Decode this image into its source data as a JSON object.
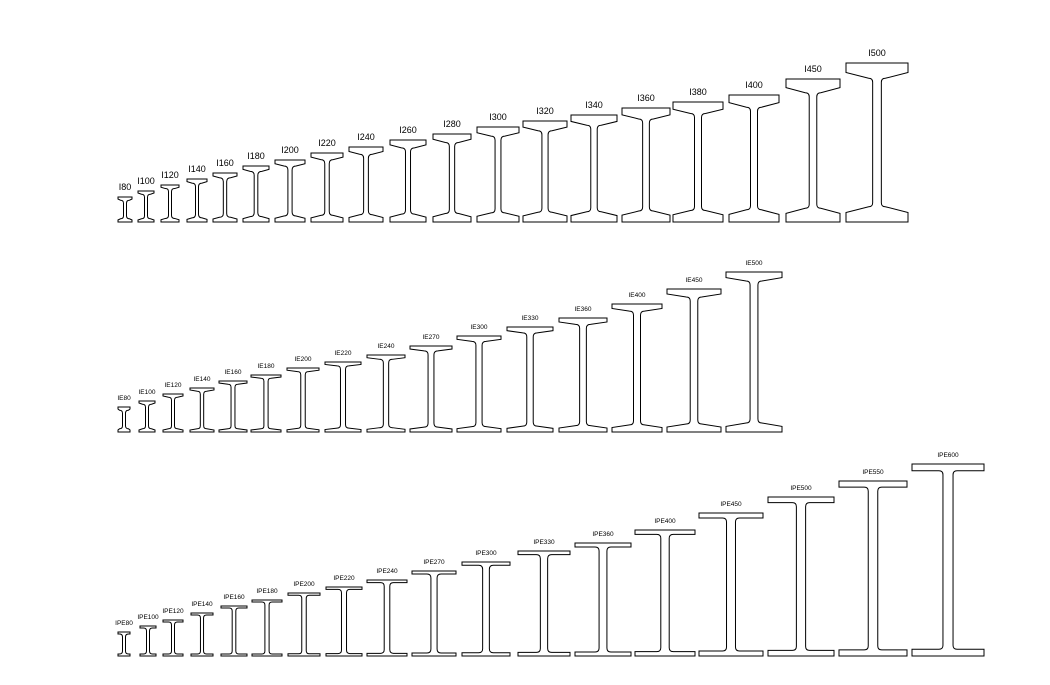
{
  "rows": [
    {
      "labels": [
        "I80",
        "I100",
        "I120",
        "I140",
        "I160",
        "I180",
        "I200",
        "I220",
        "I240",
        "I260",
        "I280",
        "I300",
        "I320",
        "I340",
        "I360",
        "I380",
        "I400",
        "I450",
        "I500"
      ]
    },
    {
      "labels": [
        "IE80",
        "IE100",
        "IE120",
        "IE140",
        "IE160",
        "IE180",
        "IE200",
        "IE220",
        "IE240",
        "IE270",
        "IE300",
        "IE330",
        "IE360",
        "IE400",
        "IE450",
        "IE500"
      ]
    },
    {
      "labels": [
        "IPE80",
        "IPE100",
        "IPE120",
        "IPE140",
        "IPE160",
        "IPE180",
        "IPE200",
        "IPE220",
        "IPE240",
        "IPE270",
        "IPE300",
        "IPE330",
        "IPE360",
        "IPE400",
        "IPE450",
        "IPE500",
        "IPE550",
        "IPE600"
      ]
    }
  ]
}
